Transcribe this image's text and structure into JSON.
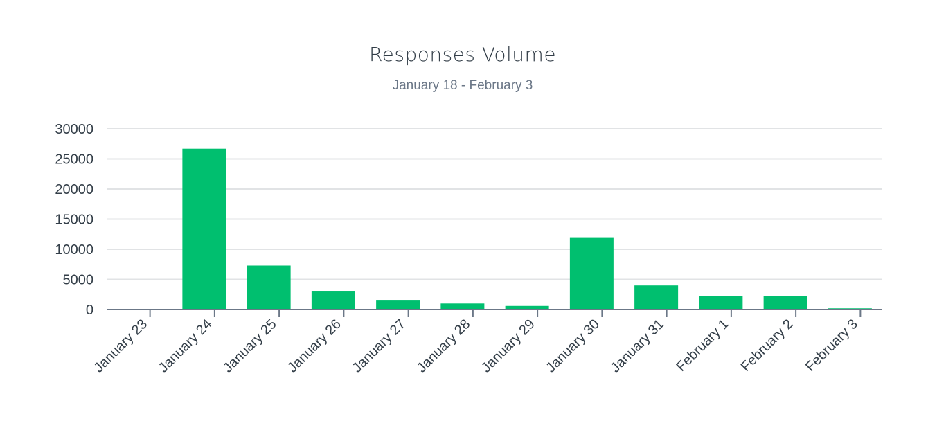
{
  "chart_data": {
    "type": "bar",
    "title": "Responses Volume",
    "subtitle": "January 18 - February 3",
    "categories": [
      "January 23",
      "January 24",
      "January 25",
      "January 26",
      "January 27",
      "January 28",
      "January 29",
      "January 30",
      "January 31",
      "February 1",
      "February 2",
      "February 3"
    ],
    "values": [
      100,
      26700,
      7300,
      3100,
      1600,
      1000,
      600,
      12000,
      4000,
      2200,
      2200,
      200
    ],
    "ylim": [
      0,
      30000
    ],
    "yticks": [
      0,
      5000,
      10000,
      15000,
      20000,
      25000,
      30000
    ],
    "xlabel": "",
    "ylabel": "",
    "grid": true,
    "legend": "none",
    "colors": {
      "bar": "#00bf6f",
      "grid": "#e1e3e5",
      "axis": "#6b7787",
      "text": "#333e48"
    }
  }
}
